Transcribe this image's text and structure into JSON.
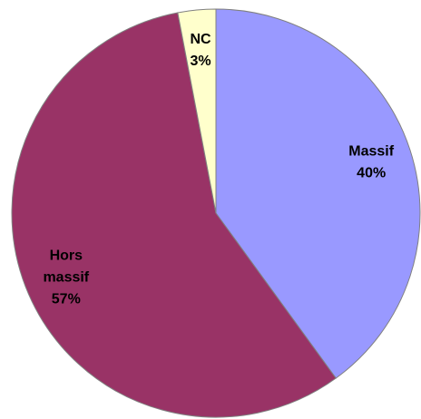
{
  "chart_data": {
    "type": "pie",
    "categories": [
      "Massif",
      "Hors massif",
      "NC"
    ],
    "values": [
      40,
      57,
      3
    ],
    "value_labels": [
      "40%",
      "57%",
      "3%"
    ],
    "colors": [
      "#9999ff",
      "#993366",
      "#ffffcc"
    ]
  }
}
